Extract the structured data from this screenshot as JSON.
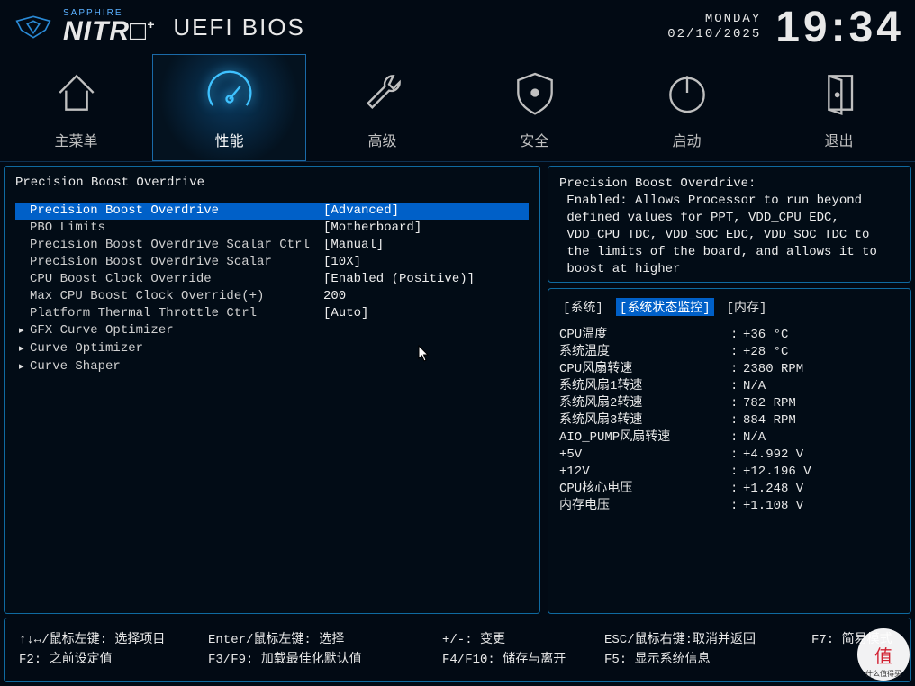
{
  "header": {
    "brand_small": "SAPPHIRE",
    "brand_big": "NITR□",
    "brand_plus": "+",
    "bios_title": "UEFI BIOS",
    "weekday": "MONDAY",
    "date": "02/10/2025",
    "time": "19:34"
  },
  "nav": {
    "tabs": [
      {
        "label": "主菜单"
      },
      {
        "label": "性能"
      },
      {
        "label": "高级"
      },
      {
        "label": "安全"
      },
      {
        "label": "启动"
      },
      {
        "label": "退出"
      }
    ],
    "active_index": 1
  },
  "settings_panel": {
    "title": "Precision Boost Overdrive",
    "rows": [
      {
        "label": "Precision Boost Overdrive",
        "value": "[Advanced]",
        "selected": true
      },
      {
        "label": "PBO Limits",
        "value": "[Motherboard]"
      },
      {
        "label": "Precision Boost Overdrive Scalar Ctrl",
        "value": "[Manual]"
      },
      {
        "label": "Precision Boost Overdrive Scalar",
        "value": "[10X]"
      },
      {
        "label": "CPU Boost Clock Override",
        "value": "[Enabled (Positive)]"
      },
      {
        "label": "Max CPU Boost Clock Override(+)",
        "value": "200"
      },
      {
        "label": "Platform Thermal Throttle Ctrl",
        "value": "[Auto]"
      },
      {
        "label": "GFX Curve Optimizer",
        "submenu": true
      },
      {
        "label": "Curve Optimizer",
        "submenu": true
      },
      {
        "label": "Curve Shaper",
        "submenu": true
      }
    ]
  },
  "description": {
    "title": "Precision Boost Overdrive:",
    "body": "Enabled: Allows Processor to run beyond defined values for PPT, VDD_CPU EDC, VDD_CPU TDC, VDD_SOC EDC, VDD_SOC TDC to the limits of the board, and allows it to boost at higher"
  },
  "status": {
    "tabs": [
      "系统",
      "系统状态监控",
      "内存"
    ],
    "active_index": 1,
    "rows": [
      {
        "label": "CPU温度",
        "value": "+36 °C"
      },
      {
        "label": "系统温度",
        "value": "+28 °C"
      },
      {
        "label": "CPU风扇转速",
        "value": "2380 RPM"
      },
      {
        "label": "系统风扇1转速",
        "value": "N/A"
      },
      {
        "label": "系统风扇2转速",
        "value": "782 RPM"
      },
      {
        "label": "系统风扇3转速",
        "value": "884 RPM"
      },
      {
        "label": "AIO_PUMP风扇转速",
        "value": "N/A"
      },
      {
        "label": "+5V",
        "value": "+4.992 V"
      },
      {
        "label": "+12V",
        "value": "+12.196 V"
      },
      {
        "label": "CPU核心电压",
        "value": "+1.248 V"
      },
      {
        "label": "内存电压",
        "value": "+1.108 V"
      }
    ]
  },
  "footer": {
    "r1c1": "↑↓↔/鼠标左键: 选择项目",
    "r2c1": "F2: 之前设定值",
    "r1c2": "Enter/鼠标左键: 选择",
    "r2c2": "F3/F9: 加载最佳化默认值",
    "r1c3": "+/-: 变更",
    "r2c3": "F4/F10: 储存与离开",
    "r1c4": "ESC/鼠标右键:取消并返回",
    "r2c4": "F5: 显示系统信息",
    "r1c5": "F7: 简易模式"
  },
  "watermark": {
    "big": "值",
    "small": "什么值得买"
  },
  "colors": {
    "bg": "#020a14",
    "accent": "#3fc2ff",
    "panel_border": "#0f6aa0",
    "highlight": "#0060c8"
  }
}
